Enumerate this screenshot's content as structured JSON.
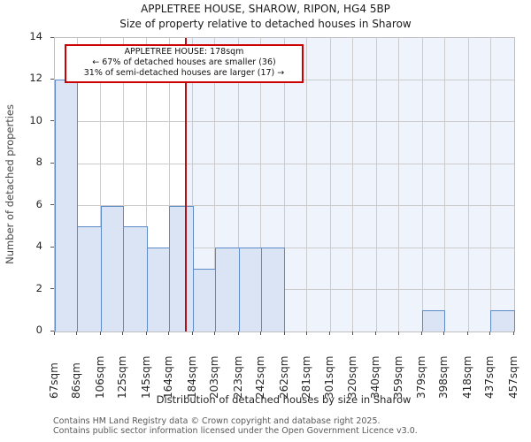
{
  "header": {
    "title": "APPLETREE HOUSE, SHAROW, RIPON, HG4 5BP",
    "subtitle": "Size of property relative to detached houses in Sharow"
  },
  "annotation": {
    "lines": [
      "APPLETREE HOUSE: 178sqm",
      "← 67% of detached houses are smaller (36)",
      "31% of semi-detached houses are larger (17) →"
    ]
  },
  "footer": {
    "lines": [
      "Contains HM Land Registry data © Crown copyright and database right 2025.",
      "Contains public sector information licensed under the Open Government Licence v3.0."
    ]
  },
  "chart_data": {
    "type": "bar",
    "title": "APPLETREE HOUSE, SHAROW, RIPON, HG4 5BP",
    "subtitle": "Size of property relative to detached houses in Sharow",
    "xlabel": "Distribution of detached houses by size in Sharow",
    "ylabel": "Number of detached properties",
    "bin_edges_sqm": [
      67,
      86,
      106,
      125,
      145,
      164,
      184,
      203,
      223,
      242,
      262,
      281,
      301,
      320,
      340,
      359,
      379,
      398,
      418,
      437,
      457
    ],
    "tick_labels": [
      "67sqm",
      "86sqm",
      "106sqm",
      "125sqm",
      "145sqm",
      "164sqm",
      "184sqm",
      "203sqm",
      "223sqm",
      "242sqm",
      "262sqm",
      "281sqm",
      "301sqm",
      "320sqm",
      "340sqm",
      "359sqm",
      "379sqm",
      "398sqm",
      "418sqm",
      "437sqm",
      "457sqm"
    ],
    "values": [
      12,
      5,
      6,
      5,
      4,
      6,
      3,
      4,
      4,
      4,
      0,
      0,
      0,
      0,
      0,
      0,
      1,
      0,
      0,
      1
    ],
    "marker_value_sqm": 178,
    "ylim": [
      0,
      14
    ],
    "yticks": [
      0,
      2,
      4,
      6,
      8,
      10,
      12,
      14
    ],
    "grid": true,
    "legend": "none",
    "colors": {
      "bar_fill": "#dbe4f4",
      "bar_edge": "#5e8bc8",
      "marker_line": "#b01116",
      "annotation_border": "#cc0000",
      "shade_right_of_marker": "#eff3fb",
      "gridline": "#cccccc"
    }
  }
}
